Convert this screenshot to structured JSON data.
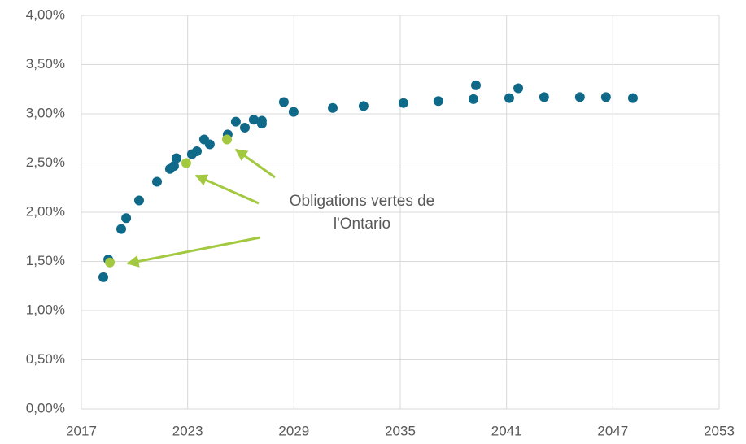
{
  "chart_data": {
    "type": "scatter",
    "annotation": [
      "Obligations vertes de",
      "l'Ontario"
    ],
    "series": [
      {
        "color": "#0f6a8a",
        "x": [
          2018.24,
          2018.52,
          2019.25,
          2019.53,
          2020.26,
          2021.27,
          2022.0,
          2022.23,
          2022.37,
          2023.24,
          2023.52,
          2023.93,
          2024.25,
          2025.26,
          2025.72,
          2026.23,
          2026.73,
          2027.19,
          2027.19,
          2028.43,
          2028.98,
          2031.19,
          2032.93,
          2035.18,
          2037.15,
          2039.13,
          2039.27,
          2041.15,
          2041.66,
          2043.12,
          2045.14,
          2046.61,
          2048.13
        ],
        "values": [
          1.34,
          1.52,
          1.83,
          1.94,
          2.12,
          2.31,
          2.44,
          2.47,
          2.55,
          2.59,
          2.62,
          2.74,
          2.69,
          2.79,
          2.92,
          2.86,
          2.94,
          2.93,
          2.9,
          3.12,
          3.02,
          3.06,
          3.08,
          3.11,
          3.13,
          3.15,
          3.29,
          3.16,
          3.26,
          3.17,
          3.17,
          3.17,
          3.16
        ]
      },
      {
        "color": "#a3c940",
        "x": [
          2018.61,
          2022.92,
          2025.22
        ],
        "values": [
          1.49,
          2.5,
          2.74
        ]
      }
    ],
    "xlim": [
      2017,
      2053
    ],
    "xticks": [
      2017,
      2023,
      2029,
      2035,
      2041,
      2047,
      2053
    ],
    "ylim": [
      0,
      4
    ],
    "yticks": [
      {
        "value": 0,
        "label": "0,00%"
      },
      {
        "value": 0.5,
        "label": "0,50%"
      },
      {
        "value": 1,
        "label": "1,00%"
      },
      {
        "value": 1.5,
        "label": "1,50%"
      },
      {
        "value": 2,
        "label": "2,00%"
      },
      {
        "value": 2.5,
        "label": "2,50%"
      },
      {
        "value": 3,
        "label": "3,00%"
      },
      {
        "value": 3.5,
        "label": "3,50%"
      },
      {
        "value": 4,
        "label": "4,00%"
      }
    ],
    "grid": true
  }
}
